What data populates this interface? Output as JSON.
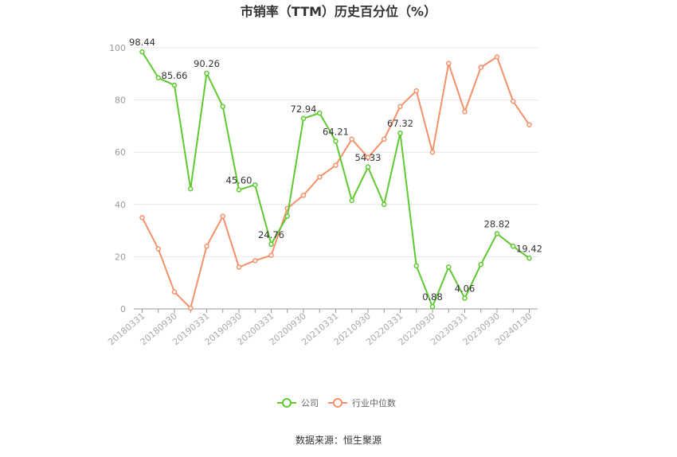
{
  "chart_data": {
    "type": "line",
    "title": "市销率（TTM）历史百分位（%）",
    "xlabel": "",
    "ylabel": "",
    "ylim": [
      0,
      100
    ],
    "yticks": [
      0,
      20,
      40,
      60,
      80,
      100
    ],
    "grid": true,
    "legend_position": "bottom",
    "x_tick_labels": [
      "20180331",
      "20180930",
      "20190331",
      "20190930",
      "20200331",
      "20200930",
      "20210331",
      "20210930",
      "20220331",
      "20220930",
      "20230331",
      "20230930",
      "20240130"
    ],
    "series": [
      {
        "name": "公司",
        "color": "#5fc932",
        "values": [
          98.44,
          88.5,
          85.66,
          46.0,
          90.26,
          77.5,
          45.6,
          47.5,
          24.76,
          35.5,
          72.94,
          75.0,
          64.21,
          41.5,
          54.33,
          40.0,
          67.32,
          16.5,
          0.88,
          16.0,
          4.06,
          17.0,
          28.82,
          24.0,
          19.42
        ],
        "labels": {
          "0": "98.44",
          "2": "85.66",
          "4": "90.26",
          "6": "45.60",
          "8": "24.76",
          "10": "72.94",
          "12": "64.21",
          "14": "54.33",
          "16": "67.32",
          "18": "0.88",
          "20": "4.06",
          "22": "28.82",
          "24": "19.42"
        }
      },
      {
        "name": "行业中位数",
        "color": "#f5916a",
        "values": [
          35.0,
          23.0,
          6.5,
          0.3,
          24.0,
          35.5,
          16.0,
          18.5,
          20.5,
          38.5,
          43.5,
          50.5,
          55.0,
          65.0,
          58.0,
          65.0,
          77.5,
          83.5,
          60.0,
          94.0,
          75.5,
          92.5,
          96.5,
          79.5,
          70.5
        ]
      }
    ]
  },
  "source_text": "数据来源：恒生聚源"
}
